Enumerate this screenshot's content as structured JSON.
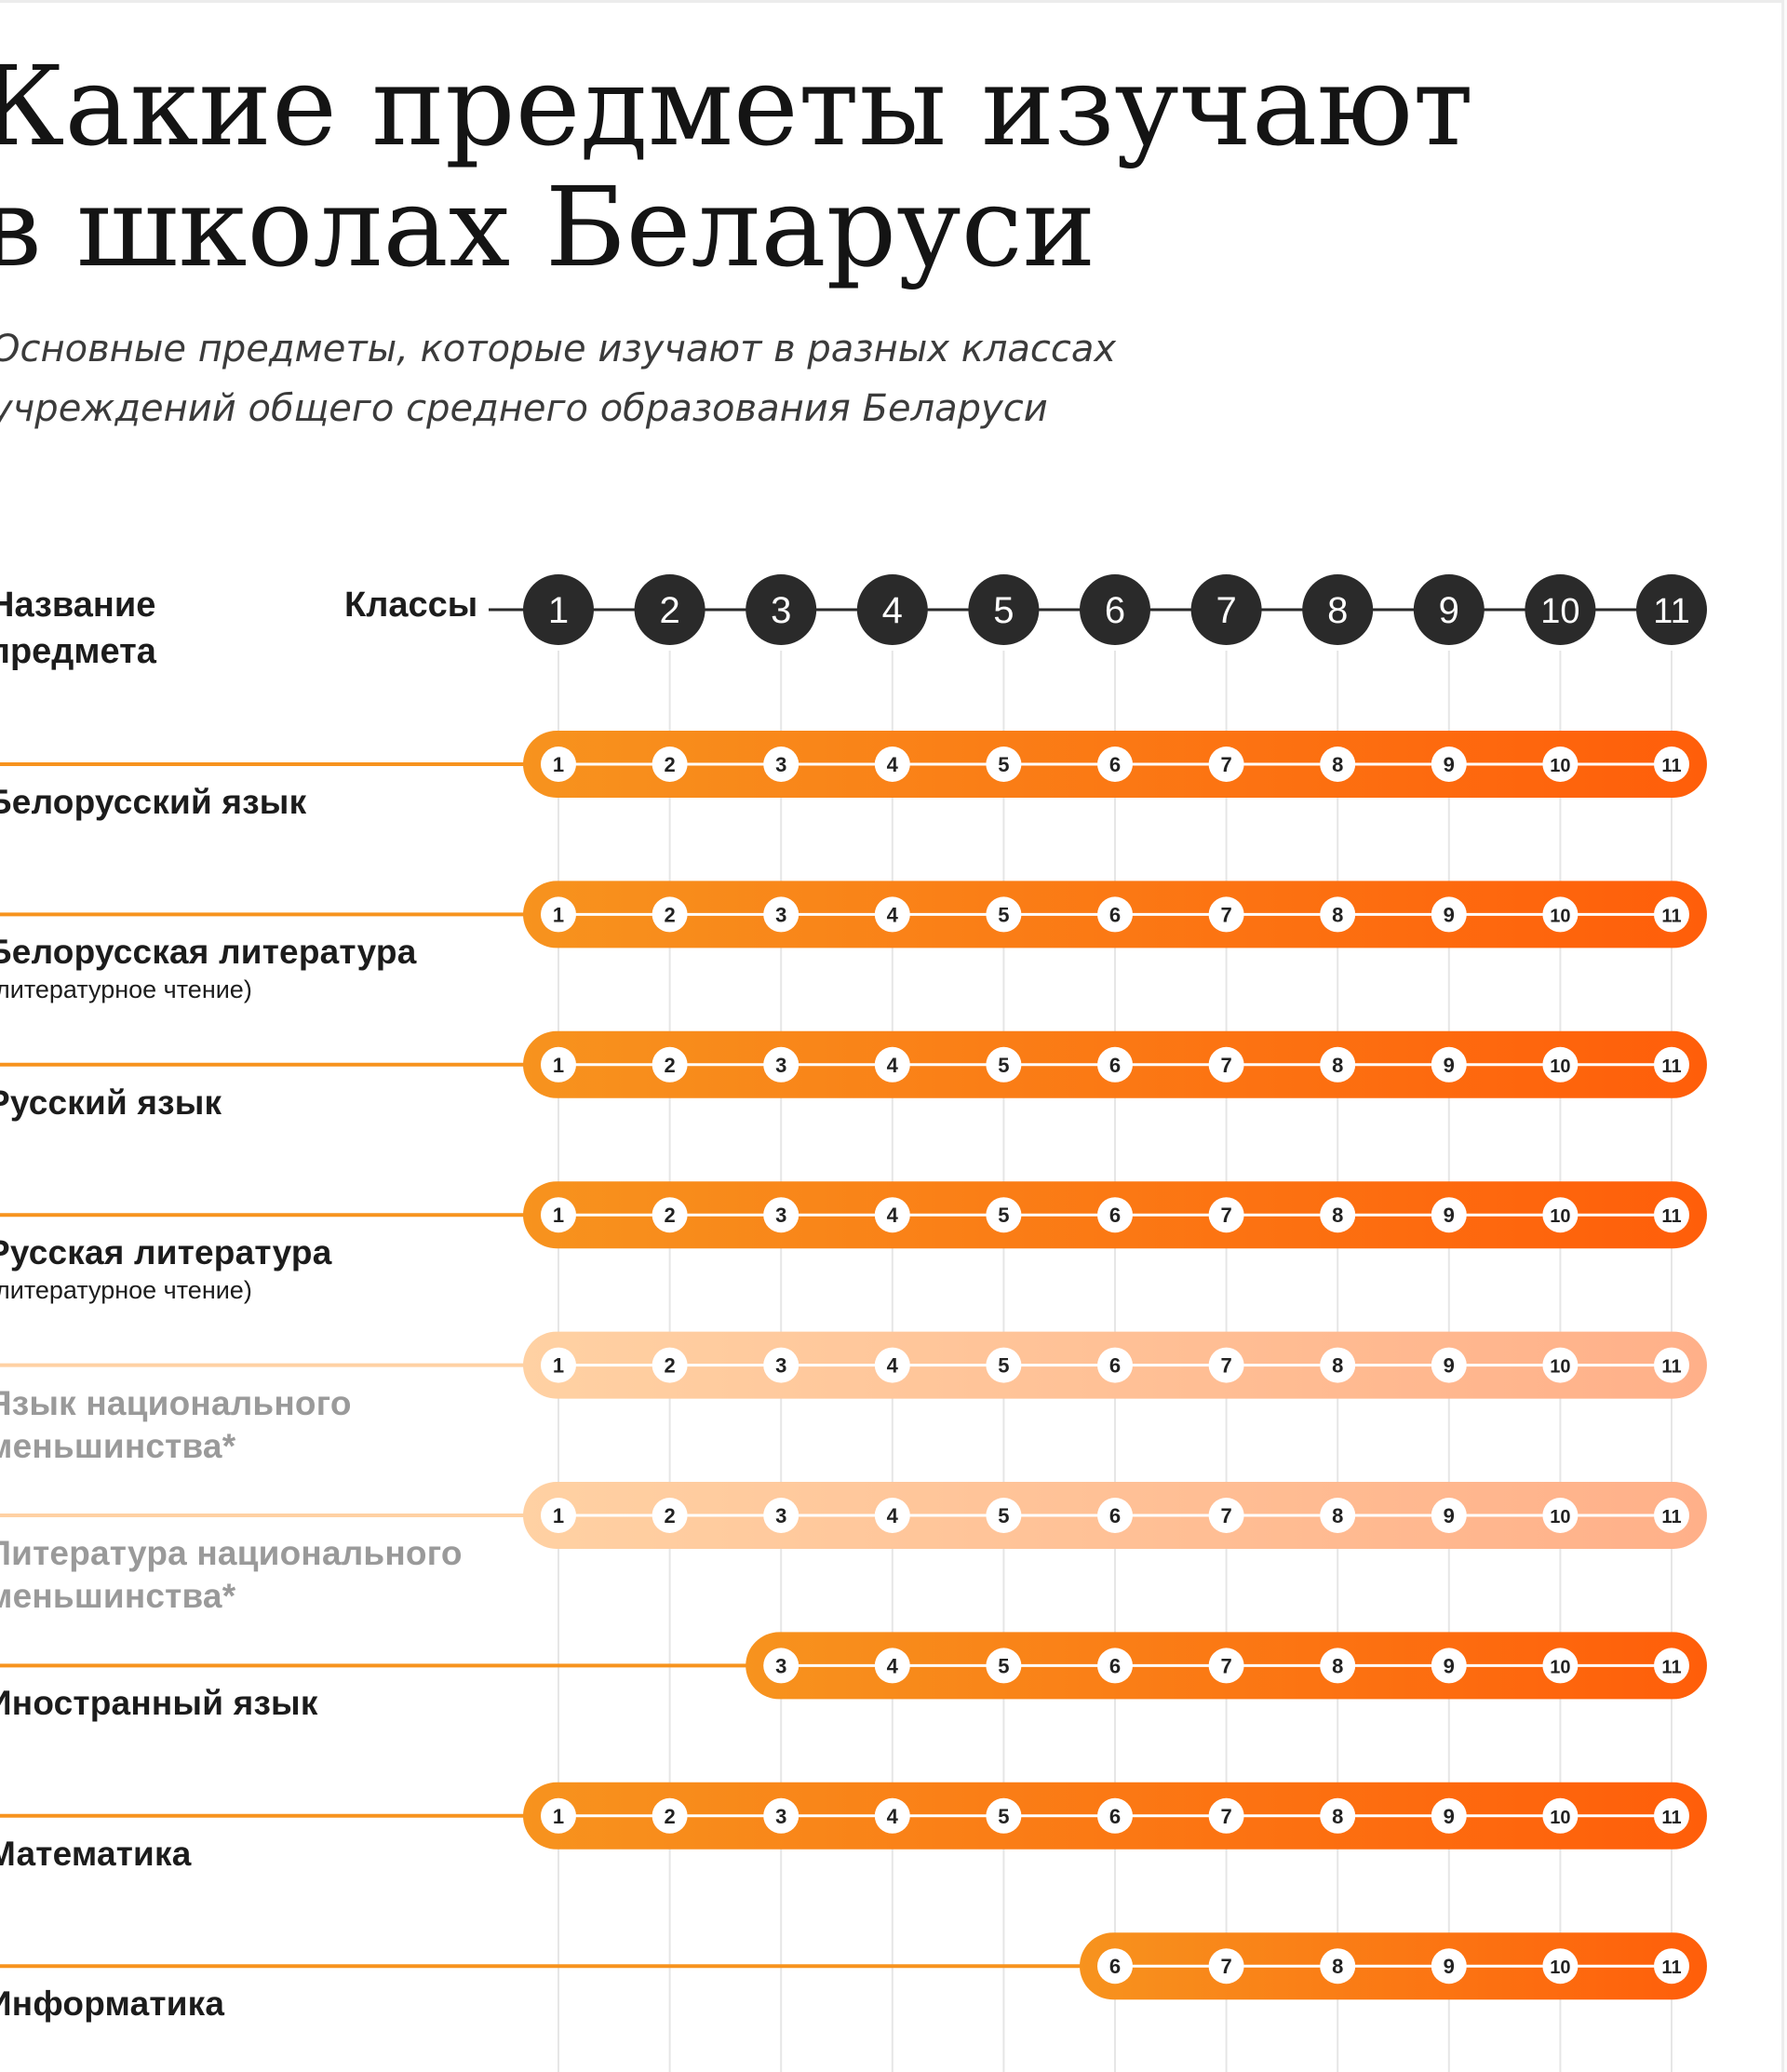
{
  "title_lines": [
    "Какие предметы изучают",
    "в школах Беларуси"
  ],
  "subtitle_lines": [
    "Основные предметы, которые изучают в разных классах",
    "учреждений общего среднего образования Беларуси"
  ],
  "header": {
    "subject_label": "Название\nпредмета",
    "classes_label": "Классы"
  },
  "colors": {
    "bar_start": "#f7931e",
    "bar_end": "#ff5e0a",
    "bar_light_start": "#ffd1a3",
    "bar_light_end": "#ffb089",
    "grade_circle": "#2a2a2a",
    "grid": "#e6e6e6"
  },
  "chart_data": {
    "type": "timeline",
    "grades": [
      1,
      2,
      3,
      4,
      5,
      6,
      7,
      8,
      9,
      10,
      11
    ],
    "subjects": [
      {
        "name": "Белорусский язык",
        "note": "",
        "from": 1,
        "to": 11,
        "optional": false
      },
      {
        "name": "Белорусская литература",
        "note": "(литературное чтение)",
        "from": 1,
        "to": 11,
        "optional": false
      },
      {
        "name": "Русский язык",
        "note": "",
        "from": 1,
        "to": 11,
        "optional": false
      },
      {
        "name": "Русская литература",
        "note": "(литературное чтение)",
        "from": 1,
        "to": 11,
        "optional": false
      },
      {
        "name": "Язык национального\nменьшинства*",
        "note": "",
        "from": 1,
        "to": 11,
        "optional": true
      },
      {
        "name": "Литература национального\nменьшинства*",
        "note": "",
        "from": 1,
        "to": 11,
        "optional": true
      },
      {
        "name": "Иностранный язык",
        "note": "",
        "from": 3,
        "to": 11,
        "optional": false
      },
      {
        "name": "Математика",
        "note": "",
        "from": 1,
        "to": 11,
        "optional": false
      },
      {
        "name": "Информатика",
        "note": "",
        "from": 6,
        "to": 11,
        "optional": false
      }
    ]
  }
}
